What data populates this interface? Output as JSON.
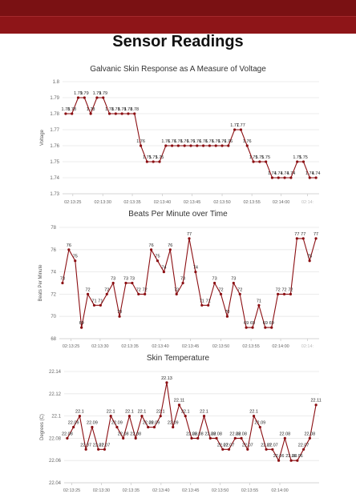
{
  "page": {
    "title": "Sensor Readings"
  },
  "colors": {
    "header_dark": "#7a1113",
    "header_light": "#8e1518",
    "series": "#8b0e12",
    "grid": "#e6e6e6"
  },
  "chart_data": [
    {
      "type": "line",
      "title": "Galvanic Skin Response as A Measure of Voltage",
      "ylabel": "Voltage",
      "xlabel": "",
      "ylim": [
        1.73,
        1.8
      ],
      "yticks": [
        "1.8",
        "1.79",
        "1.78",
        "1.77",
        "1.76",
        "1.75",
        "1.74",
        "1.73"
      ],
      "xticks": [
        "02:13:25",
        "02:13:30",
        "02:13:35",
        "02:13:40",
        "02:13:45",
        "02:13:50",
        "02:13:55",
        "02:14:00",
        "02:14:"
      ],
      "labels": [
        "1.78",
        "1.78",
        "1.79",
        "1.79",
        "1.78",
        "1.79",
        "1.79",
        "1.78",
        "1.78",
        "1.78",
        "1.78",
        "1.78",
        "1.76",
        "1.75",
        "1.75",
        "1.75",
        "1.76",
        "1.76",
        "1.76",
        "1.76",
        "1.76",
        "1.76",
        "1.76",
        "1.76",
        "1.76",
        "1.76",
        "1.76",
        "1.77",
        "1.77",
        "1.76",
        "1.75",
        "1.75",
        "1.75",
        "1.74",
        "1.74",
        "1.74",
        "1.74",
        "1.75",
        "1.75",
        "1.74",
        "1.74"
      ],
      "values": [
        1.78,
        1.78,
        1.79,
        1.79,
        1.78,
        1.79,
        1.79,
        1.78,
        1.78,
        1.78,
        1.78,
        1.78,
        1.76,
        1.75,
        1.75,
        1.75,
        1.76,
        1.76,
        1.76,
        1.76,
        1.76,
        1.76,
        1.76,
        1.76,
        1.76,
        1.76,
        1.76,
        1.77,
        1.77,
        1.76,
        1.75,
        1.75,
        1.75,
        1.74,
        1.74,
        1.74,
        1.74,
        1.75,
        1.75,
        1.74,
        1.74
      ]
    },
    {
      "type": "line",
      "title": "Beats Per Minute over Time",
      "ylabel": "Beats Per Minute",
      "xlabel": "",
      "ylim": [
        68,
        78
      ],
      "yticks": [
        "78",
        "76",
        "74",
        "72",
        "70",
        "68"
      ],
      "xticks": [
        "02:13:25",
        "02:13:30",
        "02:13:35",
        "02:13:40",
        "02:13:45",
        "02:13:50",
        "02:13:55",
        "02:14:00",
        "02:14:"
      ],
      "labels": [
        "73",
        "76",
        "75",
        "69",
        "72",
        "71",
        "71",
        "72",
        "73",
        "70",
        "73",
        "73",
        "72",
        "72",
        "76",
        "75",
        "74",
        "76",
        "72",
        "73",
        "77",
        "74",
        "71",
        "71",
        "73",
        "72",
        "70",
        "73",
        "72",
        "69",
        "69",
        "71",
        "69",
        "69",
        "72",
        "72",
        "72",
        "77",
        "77",
        "75",
        "77"
      ],
      "values": [
        73,
        76,
        75,
        69,
        72,
        71,
        71,
        72,
        73,
        70,
        73,
        73,
        72,
        72,
        76,
        75,
        74,
        76,
        72,
        73,
        77,
        74,
        71,
        71,
        73,
        72,
        70,
        73,
        72,
        69,
        69,
        71,
        69,
        69,
        72,
        72,
        72,
        77,
        77,
        75,
        77
      ]
    },
    {
      "type": "line",
      "title": "Skin Temperature",
      "ylabel": "Degrees (C)",
      "xlabel": "",
      "ylim": [
        22.04,
        22.14
      ],
      "yticks": [
        "22.14",
        "22.12",
        "22.1",
        "22.08",
        "22.06",
        "22.04"
      ],
      "xticks": [
        "02:13:25",
        "02:13:30",
        "02:13:35",
        "02:13:40",
        "02:13:45",
        "02:13:50",
        "02:13:55",
        "02:14:00"
      ],
      "labels": [
        "22.08",
        "22.09",
        "22.1",
        "22.07",
        "22.09",
        "22.07",
        "22.07",
        "22.1",
        "22.09",
        "22.08",
        "22.1",
        "22.08",
        "22.1",
        "22.09",
        "22.09",
        "22.1",
        "22.13",
        "22.09",
        "22.11",
        "22.1",
        "22.08",
        "22.08",
        "22.1",
        "22.08",
        "22.08",
        "22.07",
        "22.07",
        "22.08",
        "22.08",
        "22.07",
        "22.1",
        "22.09",
        "22.07",
        "22.07",
        "22.06",
        "22.08",
        "22.06",
        "22.06",
        "22.07",
        "22.08",
        "22.11"
      ],
      "values": [
        22.08,
        22.09,
        22.1,
        22.07,
        22.09,
        22.07,
        22.07,
        22.1,
        22.09,
        22.08,
        22.1,
        22.08,
        22.1,
        22.09,
        22.09,
        22.1,
        22.13,
        22.09,
        22.11,
        22.1,
        22.08,
        22.08,
        22.1,
        22.08,
        22.08,
        22.07,
        22.07,
        22.08,
        22.08,
        22.07,
        22.1,
        22.09,
        22.07,
        22.07,
        22.06,
        22.08,
        22.06,
        22.06,
        22.07,
        22.08,
        22.11
      ]
    }
  ]
}
